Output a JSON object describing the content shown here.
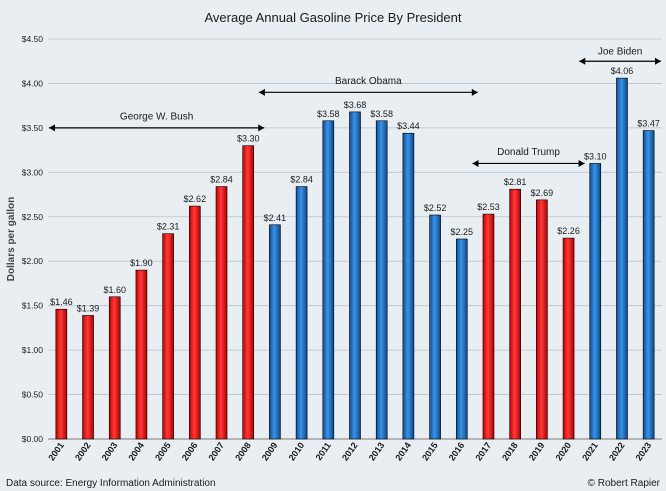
{
  "chart_data": {
    "type": "bar",
    "title": "Average Annual Gasoline Price By President",
    "ylabel": "Dollars per gallon",
    "xlabel": "",
    "ylim": [
      0,
      4.5
    ],
    "yticks": [
      "$0.00",
      "$0.50",
      "$1.00",
      "$1.50",
      "$2.00",
      "$2.50",
      "$3.00",
      "$3.50",
      "$4.00",
      "$4.50"
    ],
    "grid": true,
    "categories": [
      "2001",
      "2002",
      "2003",
      "2004",
      "2005",
      "2006",
      "2007",
      "2008",
      "2009",
      "2010",
      "2011",
      "2012",
      "2013",
      "2014",
      "2015",
      "2016",
      "2017",
      "2018",
      "2019",
      "2020",
      "2021",
      "2022",
      "2023"
    ],
    "values": [
      1.46,
      1.39,
      1.6,
      1.9,
      2.31,
      2.62,
      2.84,
      3.3,
      2.41,
      2.84,
      3.58,
      3.68,
      3.58,
      3.44,
      2.52,
      2.25,
      2.53,
      2.81,
      2.69,
      2.26,
      3.1,
      4.06,
      3.47
    ],
    "data_labels": [
      "$1.46",
      "$1.39",
      "$1.60",
      "$1.90",
      "$2.31",
      "$2.62",
      "$2.84",
      "$3.30",
      "$2.41",
      "$2.84",
      "$3.58",
      "$3.68",
      "$3.58",
      "$3.44",
      "$2.52",
      "$2.25",
      "$2.53",
      "$2.81",
      "$2.69",
      "$2.26",
      "$3.10",
      "$4.06",
      "$3.47"
    ],
    "party": [
      "R",
      "R",
      "R",
      "R",
      "R",
      "R",
      "R",
      "R",
      "D",
      "D",
      "D",
      "D",
      "D",
      "D",
      "D",
      "D",
      "R",
      "R",
      "R",
      "R",
      "D",
      "D",
      "D"
    ],
    "colors": {
      "R": "#ee1111",
      "D": "#1a6fc4"
    },
    "presidents": [
      {
        "name": "George W. Bush",
        "from": "2001",
        "to": "2008",
        "value": 3.5,
        "label_value": 3.63
      },
      {
        "name": "Barack Obama",
        "from": "2009",
        "to": "2016",
        "value": 3.9,
        "label_value": 4.03
      },
      {
        "name": "Donald Trump",
        "from": "2017",
        "to": "2020",
        "value": 3.1,
        "label_value": 3.23
      },
      {
        "name": "Joe Biden",
        "from": "2021",
        "to": "2023",
        "value": 4.25,
        "label_value": 4.36
      }
    ]
  },
  "footer": {
    "source": "Data source: Energy Information Administration",
    "credit": "© Robert Rapier"
  }
}
